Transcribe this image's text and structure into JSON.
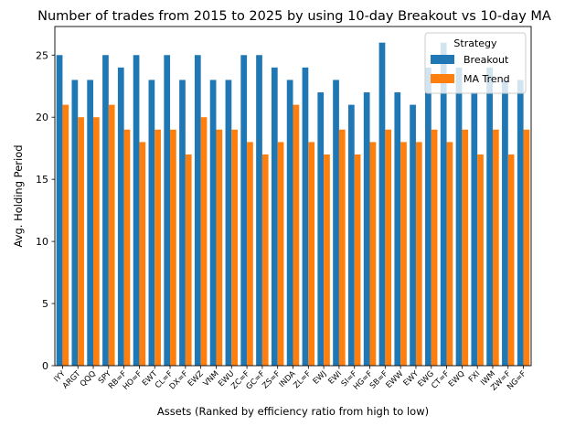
{
  "chart_data": {
    "type": "bar",
    "title": "Number of trades from 2015 to 2025 by using 10-day Breakout vs 10-day MA",
    "xlabel": "Assets (Ranked by efficiency ratio from high to low)",
    "ylabel": "Avg. Holding Period",
    "ylim": [
      0,
      27.3
    ],
    "yticks": [
      0,
      5,
      10,
      15,
      20,
      25
    ],
    "categories": [
      "IYY",
      "ARGT",
      "QQQ",
      "SPY",
      "RB=F",
      "HO=F",
      "EWT",
      "CL=F",
      "DX=F",
      "EWZ",
      "VNM",
      "EWU",
      "ZC=F",
      "GC=F",
      "ZS=F",
      "INDA",
      "ZL=F",
      "EWJ",
      "EWI",
      "SI=F",
      "HG=F",
      "SB=F",
      "EWW",
      "EWY",
      "EWG",
      "CT=F",
      "EWQ",
      "FXI",
      "IWM",
      "ZW=F",
      "NG=F"
    ],
    "series": [
      {
        "name": "Breakout",
        "color": "#1f77b4",
        "values": [
          25,
          23,
          23,
          25,
          24,
          25,
          23,
          25,
          23,
          25,
          23,
          23,
          25,
          25,
          24,
          23,
          24,
          22,
          23,
          21,
          22,
          26,
          22,
          21,
          24,
          26,
          24,
          22,
          24,
          23,
          23
        ]
      },
      {
        "name": "MA Trend",
        "color": "#ff7f0e",
        "values": [
          21,
          20,
          20,
          21,
          19,
          18,
          19,
          19,
          17,
          20,
          19,
          19,
          18,
          17,
          18,
          21,
          18,
          17,
          19,
          17,
          18,
          19,
          18,
          18,
          19,
          18,
          19,
          17,
          19,
          17,
          19
        ]
      }
    ],
    "legend": {
      "title": "Strategy",
      "placement": "top-right"
    },
    "grid": false
  }
}
